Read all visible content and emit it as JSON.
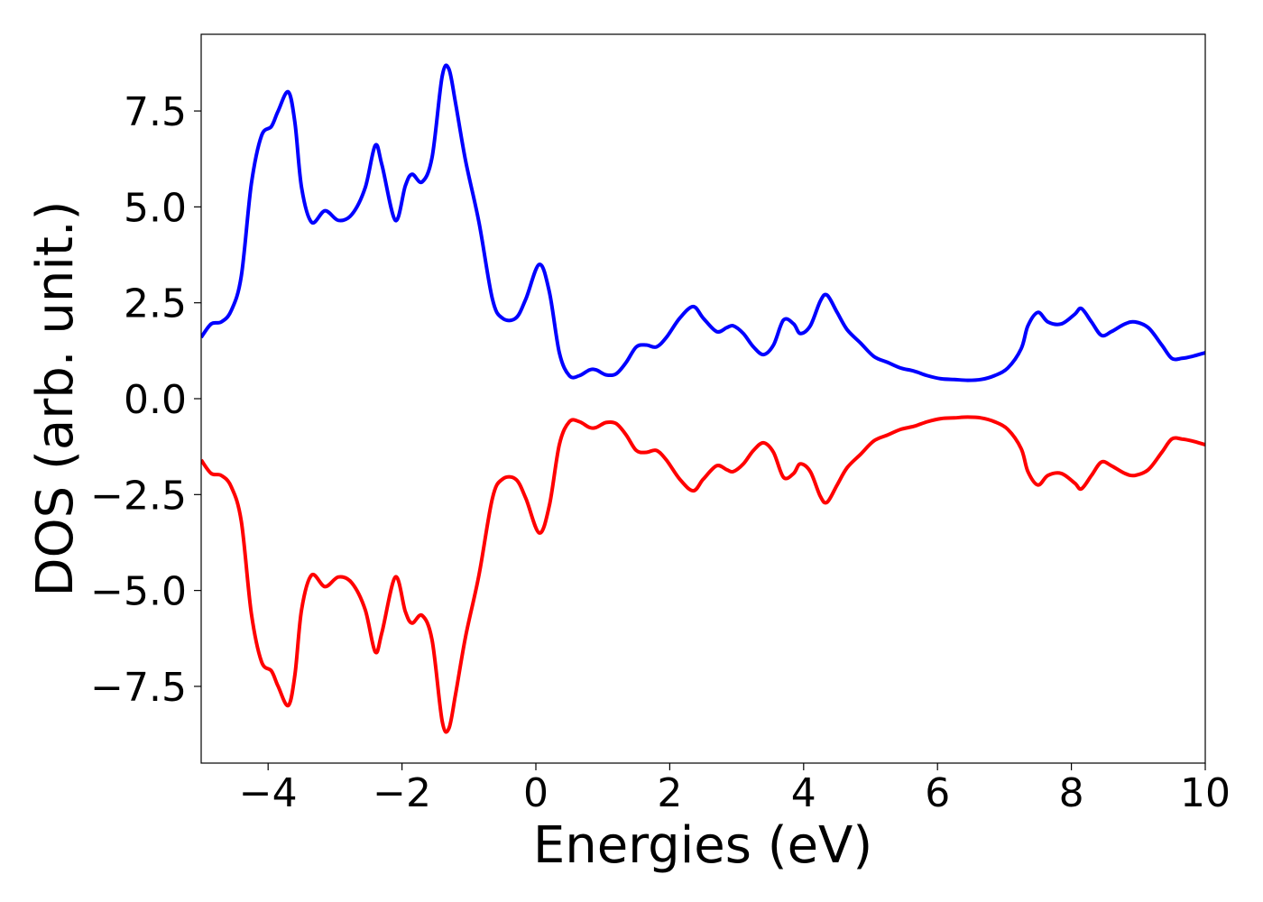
{
  "chart_data": {
    "type": "line",
    "title": "",
    "xlabel": "Energies (eV)",
    "ylabel": "DOS (arb. unit.)",
    "xlim": [
      -5,
      10
    ],
    "ylim": [
      -9.5,
      9.5
    ],
    "grid": false,
    "x_ticks": [
      -4,
      -2,
      0,
      2,
      4,
      6,
      8,
      10
    ],
    "x_tick_labels": [
      "−4",
      "−2",
      "0",
      "2",
      "4",
      "6",
      "8",
      "10"
    ],
    "y_ticks": [
      7.5,
      5.0,
      2.5,
      0.0,
      -2.5,
      -5.0,
      -7.5
    ],
    "y_tick_labels": [
      "7.5",
      "5.0",
      "2.5",
      "0.0",
      "−2.5",
      "−5.0",
      "−7.5"
    ],
    "series": [
      {
        "color": "#0000ff",
        "x": [
          -5.0,
          -4.85,
          -4.7,
          -4.55,
          -4.4,
          -4.25,
          -4.1,
          -3.95,
          -3.85,
          -3.7,
          -3.6,
          -3.5,
          -3.35,
          -3.15,
          -2.95,
          -2.75,
          -2.55,
          -2.4,
          -2.3,
          -2.1,
          -1.95,
          -1.85,
          -1.7,
          -1.55,
          -1.4,
          -1.3,
          -1.2,
          -1.05,
          -0.85,
          -0.65,
          -0.5,
          -0.3,
          -0.15,
          0.05,
          0.2,
          0.35,
          0.5,
          0.65,
          0.8,
          0.9,
          1.05,
          1.2,
          1.35,
          1.5,
          1.65,
          1.8,
          1.95,
          2.15,
          2.35,
          2.5,
          2.7,
          2.85,
          2.95,
          3.1,
          3.25,
          3.4,
          3.55,
          3.7,
          3.85,
          3.95,
          4.1,
          4.25,
          4.35,
          4.5,
          4.65,
          4.85,
          5.05,
          5.25,
          5.45,
          5.65,
          5.85,
          6.05,
          6.25,
          6.45,
          6.65,
          6.85,
          7.05,
          7.25,
          7.35,
          7.5,
          7.65,
          7.85,
          8.05,
          8.15,
          8.3,
          8.45,
          8.6,
          8.8,
          8.95,
          9.15,
          9.35,
          9.5,
          9.65,
          9.8,
          10.0
        ],
        "y": [
          1.6,
          1.95,
          2.0,
          2.3,
          3.2,
          5.6,
          6.85,
          7.1,
          7.5,
          8.0,
          7.2,
          5.5,
          4.6,
          4.9,
          4.65,
          4.8,
          5.5,
          6.6,
          6.1,
          4.65,
          5.55,
          5.85,
          5.65,
          6.3,
          8.4,
          8.6,
          7.7,
          6.2,
          4.6,
          2.6,
          2.1,
          2.1,
          2.6,
          3.5,
          2.8,
          1.2,
          0.6,
          0.6,
          0.75,
          0.75,
          0.62,
          0.65,
          0.95,
          1.35,
          1.4,
          1.35,
          1.6,
          2.1,
          2.4,
          2.1,
          1.75,
          1.85,
          1.9,
          1.7,
          1.35,
          1.15,
          1.4,
          2.05,
          1.95,
          1.7,
          1.9,
          2.55,
          2.7,
          2.25,
          1.8,
          1.45,
          1.1,
          0.95,
          0.8,
          0.72,
          0.6,
          0.52,
          0.5,
          0.48,
          0.5,
          0.6,
          0.8,
          1.3,
          1.9,
          2.25,
          2.0,
          1.95,
          2.2,
          2.35,
          2.0,
          1.65,
          1.75,
          1.95,
          2.0,
          1.85,
          1.4,
          1.05,
          1.05,
          1.1,
          1.2
        ]
      },
      {
        "color": "#ff0000",
        "x": [
          -5.0,
          -4.85,
          -4.7,
          -4.55,
          -4.4,
          -4.25,
          -4.1,
          -3.95,
          -3.85,
          -3.7,
          -3.6,
          -3.5,
          -3.35,
          -3.15,
          -2.95,
          -2.75,
          -2.55,
          -2.4,
          -2.3,
          -2.1,
          -1.95,
          -1.85,
          -1.7,
          -1.55,
          -1.4,
          -1.3,
          -1.2,
          -1.05,
          -0.85,
          -0.65,
          -0.5,
          -0.3,
          -0.15,
          0.05,
          0.2,
          0.35,
          0.5,
          0.65,
          0.8,
          0.9,
          1.05,
          1.2,
          1.35,
          1.5,
          1.65,
          1.8,
          1.95,
          2.15,
          2.35,
          2.5,
          2.7,
          2.85,
          2.95,
          3.1,
          3.25,
          3.4,
          3.55,
          3.7,
          3.85,
          3.95,
          4.1,
          4.25,
          4.35,
          4.5,
          4.65,
          4.85,
          5.05,
          5.25,
          5.45,
          5.65,
          5.85,
          6.05,
          6.25,
          6.45,
          6.65,
          6.85,
          7.05,
          7.25,
          7.35,
          7.5,
          7.65,
          7.85,
          8.05,
          8.15,
          8.3,
          8.45,
          8.6,
          8.8,
          8.95,
          9.15,
          9.35,
          9.5,
          9.65,
          9.8,
          10.0
        ],
        "y": [
          -1.6,
          -1.95,
          -2.0,
          -2.3,
          -3.2,
          -5.6,
          -6.85,
          -7.1,
          -7.5,
          -8.0,
          -7.2,
          -5.5,
          -4.6,
          -4.9,
          -4.65,
          -4.8,
          -5.5,
          -6.6,
          -6.1,
          -4.65,
          -5.55,
          -5.85,
          -5.65,
          -6.3,
          -8.4,
          -8.6,
          -7.7,
          -6.2,
          -4.6,
          -2.6,
          -2.1,
          -2.1,
          -2.6,
          -3.5,
          -2.8,
          -1.2,
          -0.6,
          -0.6,
          -0.75,
          -0.75,
          -0.62,
          -0.65,
          -0.95,
          -1.35,
          -1.4,
          -1.35,
          -1.6,
          -2.1,
          -2.4,
          -2.1,
          -1.75,
          -1.85,
          -1.9,
          -1.7,
          -1.35,
          -1.15,
          -1.4,
          -2.05,
          -1.95,
          -1.7,
          -1.9,
          -2.55,
          -2.7,
          -2.25,
          -1.8,
          -1.45,
          -1.1,
          -0.95,
          -0.8,
          -0.72,
          -0.6,
          -0.52,
          -0.5,
          -0.48,
          -0.5,
          -0.6,
          -0.8,
          -1.3,
          -1.9,
          -2.25,
          -2.0,
          -1.95,
          -2.2,
          -2.35,
          -2.0,
          -1.65,
          -1.75,
          -1.95,
          -2.0,
          -1.85,
          -1.4,
          -1.05,
          -1.05,
          -1.1,
          -1.2
        ]
      }
    ]
  }
}
